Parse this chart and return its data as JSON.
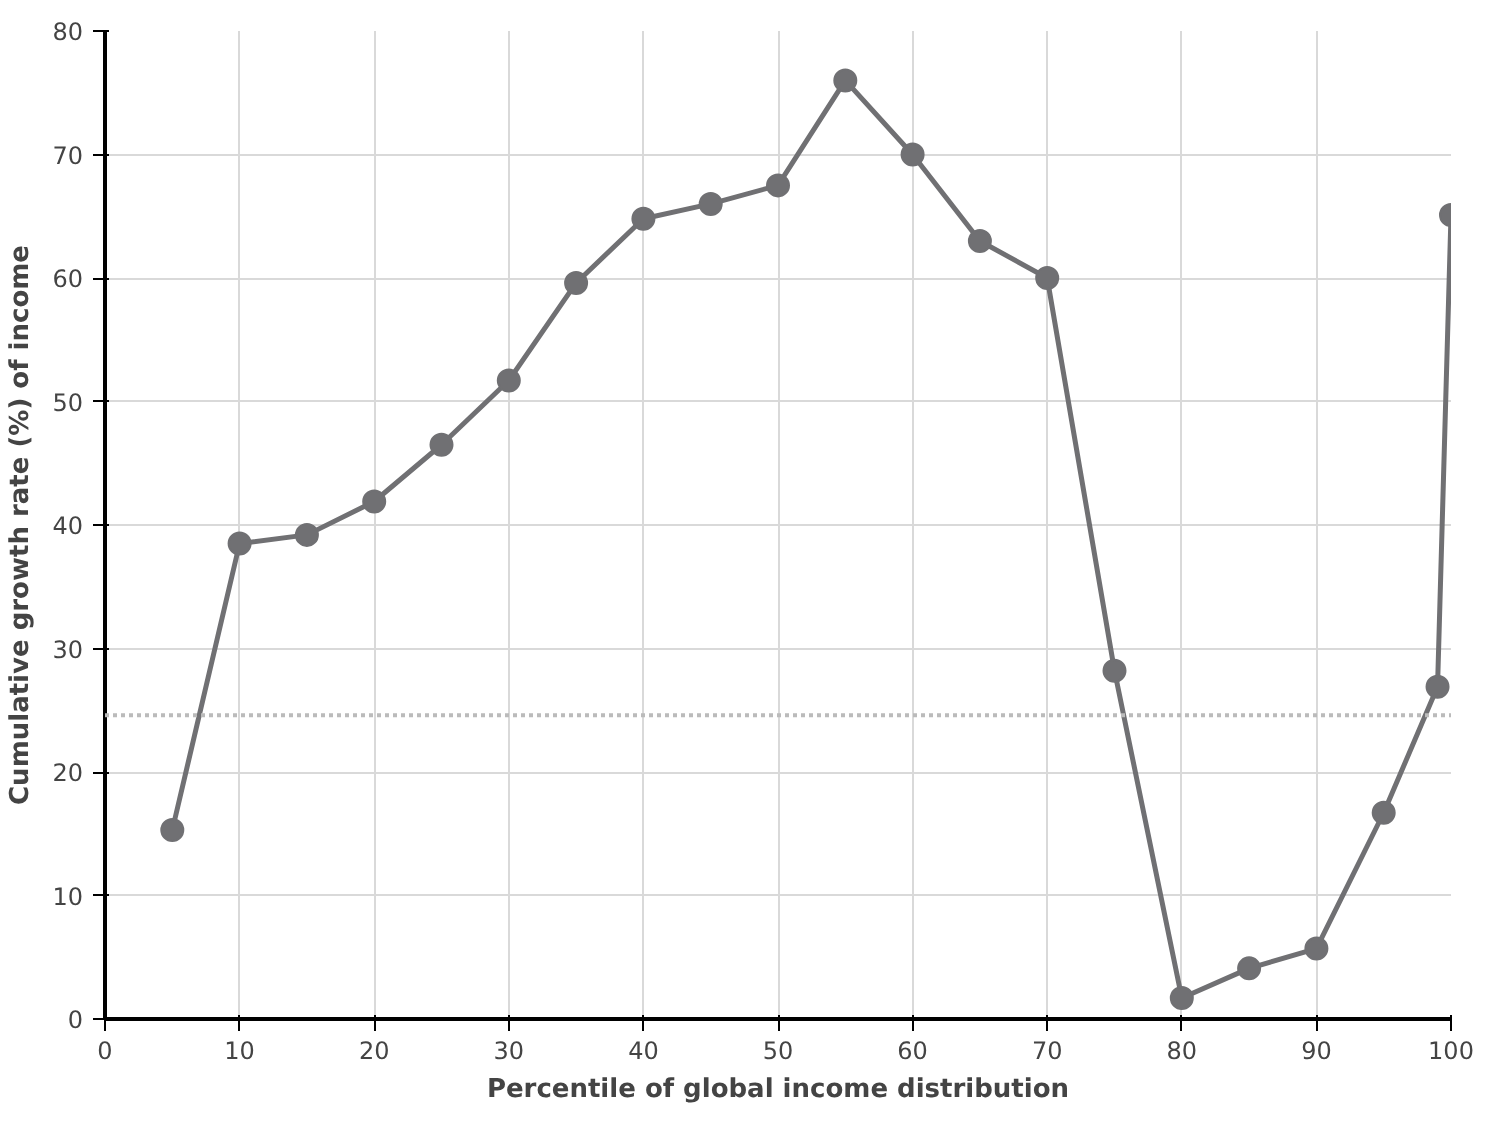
{
  "chart_data": {
    "type": "line",
    "xlabel": "Percentile of global income distribution",
    "ylabel": "Cumulative growth rate (%) of income",
    "x": [
      5,
      10,
      15,
      20,
      25,
      30,
      35,
      40,
      45,
      50,
      55,
      60,
      65,
      70,
      75,
      80,
      85,
      90,
      95,
      99,
      100
    ],
    "series": [
      {
        "color": "#707073",
        "values": [
          15.3,
          38.5,
          39.2,
          41.9,
          46.5,
          51.7,
          59.6,
          64.8,
          66,
          67.5,
          76,
          70,
          63,
          60,
          28.2,
          1.7,
          4.1,
          5.7,
          16.7,
          26.9,
          65.1
        ]
      }
    ],
    "xlim": [
      0,
      100
    ],
    "ylim": [
      0,
      80
    ],
    "xticks": [
      0,
      10,
      20,
      30,
      40,
      50,
      60,
      70,
      80,
      90,
      100
    ],
    "yticks": [
      0,
      10,
      20,
      30,
      40,
      50,
      60,
      70,
      80
    ],
    "ref_lines": [
      {
        "axis": "y",
        "value": 24.6,
        "label": null,
        "color": "#bbbbbb",
        "line_style": "dotted"
      }
    ],
    "grid": true,
    "marker": "circle",
    "line_style": "solid"
  }
}
